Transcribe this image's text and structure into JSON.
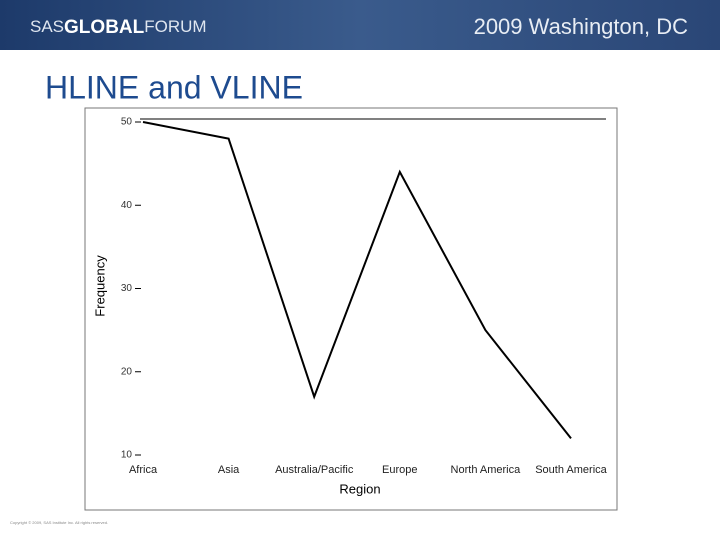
{
  "header": {
    "logo_sas": "SAS",
    "logo_global": "GLOBAL",
    "logo_forum": "FORUM",
    "event": "2009 Washington, DC"
  },
  "title": "HLINE and VLINE",
  "chart_data": {
    "type": "line",
    "x_label": "Region",
    "y_label": "Frequency",
    "categories": [
      "Africa",
      "Asia",
      "Australia/Pacific",
      "Europe",
      "North America",
      "South America"
    ],
    "values": [
      50,
      48,
      17,
      44,
      25,
      12
    ],
    "color": "#000000",
    "ylim": [
      10,
      50
    ],
    "yticks": [
      10,
      20,
      30,
      40,
      50
    ]
  },
  "footer": "Copyright © 2009, SAS Institute Inc. All rights reserved."
}
